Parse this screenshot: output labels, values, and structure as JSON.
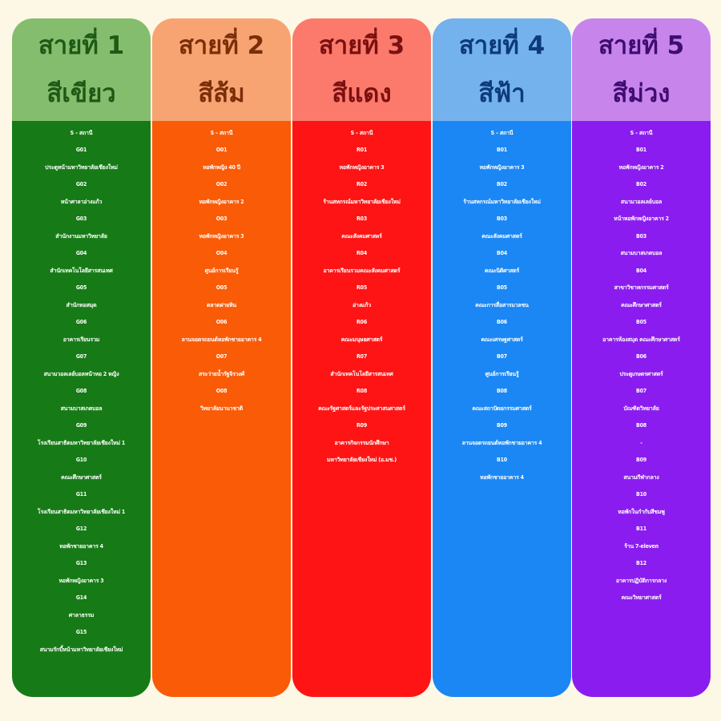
{
  "lines": [
    {
      "id": "green",
      "title": "สายที่ 1",
      "color_name": "สีเขียว",
      "head_bg": "#85bd6e",
      "head_fg": "#1e5a16",
      "body_bg": "#167b16",
      "station_header": "S – สถานี",
      "stops": [
        {
          "code": "G01",
          "name": "ประตูหน้ามหาวิทยาลัยเชียงใหม่"
        },
        {
          "code": "G02",
          "name": "หน้าศาลาอ่างแก้ว"
        },
        {
          "code": "G03",
          "name": "สำนักงานมหาวิทยาลัย"
        },
        {
          "code": "G04",
          "name": "สำนักเทคโนโลยีสารสนเทศ"
        },
        {
          "code": "G05",
          "name": "สำนักหอสมุด"
        },
        {
          "code": "G06",
          "name": "อาคารเรียนรวม"
        },
        {
          "code": "G07",
          "name": "สนามวอลเลย์บอลหน้าหอ 2 หญิง"
        },
        {
          "code": "G08",
          "name": "สนามบาสเกตบอล"
        },
        {
          "code": "G09",
          "name": "โรงเรียนสาธิตมหาวิทยาลัยเชียงใหม่ 1"
        },
        {
          "code": "G10",
          "name": "คณะศึกษาศาสตร์"
        },
        {
          "code": "G11",
          "name": "โรงเรียนสาธิตมหาวิทยาลัยเชียงใหม่ 1"
        },
        {
          "code": "G12",
          "name": "หอพักชายอาคาร 4"
        },
        {
          "code": "G13",
          "name": "หอพักหญิงอาคาร 3"
        },
        {
          "code": "G14",
          "name": "ศาลาธรรม"
        },
        {
          "code": "G15",
          "name": "สนามรักบี้หน้ามหาวิทยาลัยเชียงใหม่"
        }
      ]
    },
    {
      "id": "orange",
      "title": "สายที่ 2",
      "color_name": "สีส้ม",
      "head_bg": "#f7a472",
      "head_fg": "#7a2e08",
      "body_bg": "#fa5b07",
      "station_header": "S – สถานี",
      "stops": [
        {
          "code": "O01",
          "name": "หอพักหญิง 40 ปี"
        },
        {
          "code": "O02",
          "name": "หอพักหญิงอาคาร 2"
        },
        {
          "code": "O03",
          "name": "หอพักหญิงอาคาร 3"
        },
        {
          "code": "O04",
          "name": "ศูนย์การเรียนรู้"
        },
        {
          "code": "O05",
          "name": "ตลาดฝายหิน"
        },
        {
          "code": "O06",
          "name": "ลานจอดรถยนต์หอพักชายอาคาร 4"
        },
        {
          "code": "O07",
          "name": "สระว่ายน้ำรัฐจิรวงศ์"
        },
        {
          "code": "O08",
          "name": "วิทยาลัยนานาชาติ"
        }
      ]
    },
    {
      "id": "red",
      "title": "สายที่ 3",
      "color_name": "สีแดง",
      "head_bg": "#fb7a6c",
      "head_fg": "#7a1010",
      "body_bg": "#fe1414",
      "station_header": "S – สถานี",
      "stops": [
        {
          "code": "R01",
          "name": "หอพักหญิงอาคาร 3"
        },
        {
          "code": "R02",
          "name": "ร้านสหกรณ์มหาวิทยาลัยเชียงใหม่"
        },
        {
          "code": "R03",
          "name": "คณะสังคมศาสตร์"
        },
        {
          "code": "R04",
          "name": "อาคารเรียนรวมคณะสังคมศาสตร์"
        },
        {
          "code": "R05",
          "name": "อ่างแก้ว"
        },
        {
          "code": "R06",
          "name": "คณะมนุษยศาสตร์"
        },
        {
          "code": "R07",
          "name": "สำนักเทคโนโลยีสารสนเทศ"
        },
        {
          "code": "R08",
          "name": "คณะรัฐศาสตร์และรัฐประศาสนศาสตร์"
        },
        {
          "code": "R09",
          "name": "อาคารกิจกรรมนักศึกษา"
        },
        {
          "code": "",
          "name": "มหาวิทยาลัยเชียงใหม่ (อ.มช.)"
        }
      ]
    },
    {
      "id": "blue",
      "title": "สายที่ 4",
      "color_name": "สีฟ้า",
      "head_bg": "#74b2ee",
      "head_fg": "#0d3a7a",
      "body_bg": "#1a87f5",
      "station_header": "S – สถานี",
      "stops": [
        {
          "code": "B01",
          "name": "หอพักหญิงอาคาร 3"
        },
        {
          "code": "B02",
          "name": "ร้านสหกรณ์มหาวิทยาลัยเชียงใหม่"
        },
        {
          "code": "B03",
          "name": "คณะสังคมศาสตร์"
        },
        {
          "code": "B04",
          "name": "คณะนิติศาสตร์"
        },
        {
          "code": "B05",
          "name": "คณะการสื่อสารมวลชน"
        },
        {
          "code": "B06",
          "name": "คณะเศรษฐศาสตร์"
        },
        {
          "code": "B07",
          "name": "ศูนย์การเรียนรู้"
        },
        {
          "code": "B08",
          "name": "คณะสถาปัตยกรรมศาสตร์"
        },
        {
          "code": "B09",
          "name": "ลานจอดรถยนต์หอพักชายอาคาร 4"
        },
        {
          "code": "B10",
          "name": "หอพักชายอาคาร 4"
        }
      ]
    },
    {
      "id": "purple",
      "title": "สายที่ 5",
      "color_name": "สีม่วง",
      "head_bg": "#c785ec",
      "head_fg": "#3f0c72",
      "body_bg": "#8b1cef",
      "station_header": "S – สถานี",
      "stops": [
        {
          "code": "B01",
          "name": "หอพักหญิงอาคาร 2"
        },
        {
          "code": "B02",
          "name": "สนามวอลเลย์บอล"
        },
        {
          "code": "",
          "name": "หน้าหอพักหญิงอาคาร 2"
        },
        {
          "code": "B03",
          "name": "สนามบาสเกตบอล"
        },
        {
          "code": "B04",
          "name": "สาขาวิชาหกรรมศาสตร์"
        },
        {
          "code": "",
          "name": "คณะศึกษาศาสตร์"
        },
        {
          "code": "B05",
          "name": "อาคารห้องสมุด คณะศึกษาศาสตร์"
        },
        {
          "code": "B06",
          "name": "ประตูเกษตรศาสตร์"
        },
        {
          "code": "B07",
          "name": "บัณฑิตวิทยาลัย"
        },
        {
          "code": "B08",
          "name": "-"
        },
        {
          "code": "B09",
          "name": "สนามกีฬากลาง"
        },
        {
          "code": "B10",
          "name": "หอพักในกำกับสีชมพู"
        },
        {
          "code": "B11",
          "name": "ร้าน 7-eleven"
        },
        {
          "code": "B12",
          "name": "อาคารปฏิบัติการกลาง"
        },
        {
          "code": "",
          "name": "คณะวิทยาศาสตร์"
        }
      ]
    }
  ]
}
